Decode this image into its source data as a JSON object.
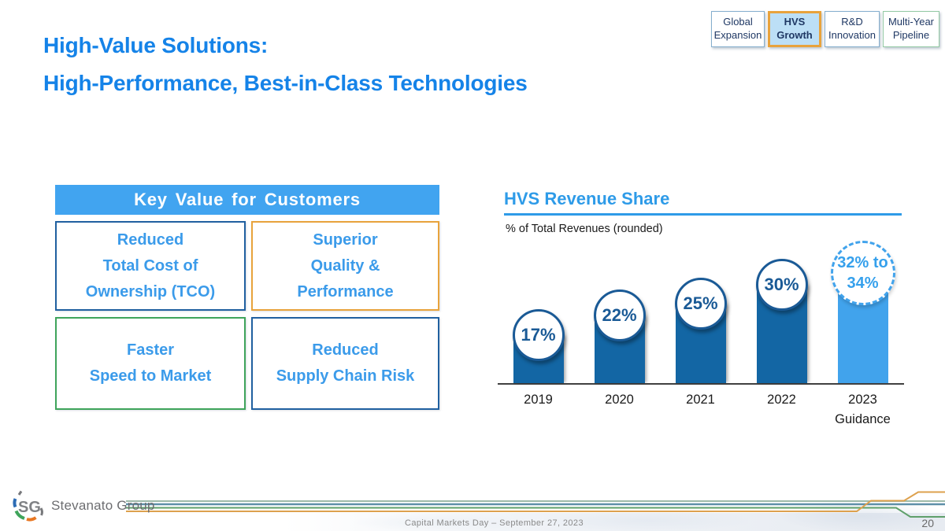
{
  "slide": {
    "title_line1": "High-Value Solutions:",
    "title_line2": "High-Performance, Best-in-Class Technologies",
    "footer_caption": "Capital Markets Day – September 27, 2023",
    "page_number": "20",
    "logo_monogram": "SG",
    "logo_text": "Stevanato Group"
  },
  "nav_tabs": [
    {
      "label_line1": "Global",
      "label_line2": "Expansion",
      "active": false
    },
    {
      "label_line1": "HVS",
      "label_line2": "Growth",
      "active": true
    },
    {
      "label_line1": "R&D",
      "label_line2": "Innovation",
      "active": false
    },
    {
      "label_line1": "Multi-Year",
      "label_line2": "Pipeline",
      "active": false
    }
  ],
  "key_value": {
    "header": "Key Value for Customers",
    "boxes": [
      {
        "lines": [
          "Reduced",
          "Total Cost of",
          "Ownership (TCO)"
        ],
        "border": "blue"
      },
      {
        "lines": [
          "Superior",
          "Quality &",
          "Performance"
        ],
        "border": "orange"
      },
      {
        "lines": [
          "Faster",
          "Speed to Market"
        ],
        "border": "green"
      },
      {
        "lines": [
          "Reduced",
          "Supply Chain Risk"
        ],
        "border": "blue"
      }
    ]
  },
  "chart_data": {
    "type": "bar",
    "title": "HVS Revenue Share",
    "subtitle": "% of Total Revenues (rounded)",
    "categories": [
      "2019",
      "2020",
      "2021",
      "2022",
      "2023 Guidance"
    ],
    "values": [
      17,
      22,
      25,
      30,
      33
    ],
    "ylim": [
      0,
      40
    ],
    "grid": false,
    "legend_position": "none",
    "bars": [
      {
        "year": "2019",
        "sub": "",
        "value": 17,
        "label_lines": [
          "17%"
        ],
        "guidance": false
      },
      {
        "year": "2020",
        "sub": "",
        "value": 22,
        "label_lines": [
          "22%"
        ],
        "guidance": false
      },
      {
        "year": "2021",
        "sub": "",
        "value": 25,
        "label_lines": [
          "25%"
        ],
        "guidance": false
      },
      {
        "year": "2022",
        "sub": "",
        "value": 30,
        "label_lines": [
          "30%"
        ],
        "guidance": false
      },
      {
        "year": "2023",
        "sub": "Guidance",
        "value": 33,
        "label_lines": [
          "32% to",
          "34%"
        ],
        "guidance": true
      }
    ],
    "guidance_label": "32% to 34%"
  },
  "colors": {
    "title_blue": "#1583E8",
    "box_text_blue": "#3B9BEA",
    "band_blue": "#41A4F0",
    "dark_blue_border": "#2060A0",
    "bar_blue": "#1366A4",
    "guidance_blue": "#41A3EC",
    "bubble_navy": "#1A5A96",
    "orange": "#E8A33C",
    "green": "#3FA45B",
    "tab_navy": "#1F3864",
    "footer_gray": "#8a8a8a"
  }
}
